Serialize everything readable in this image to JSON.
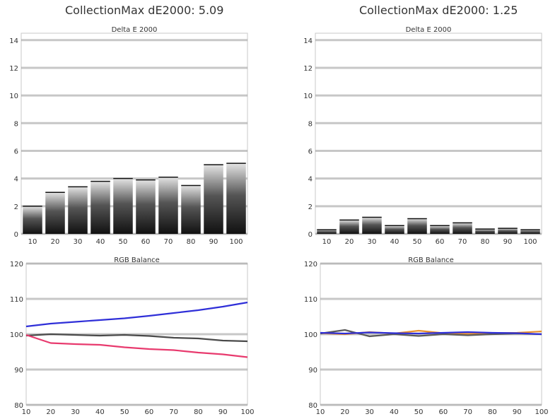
{
  "left_title": "CollectionMax dE2000: 5.09",
  "right_title": "CollectionMax dE2000: 1.25",
  "chart_data": [
    {
      "id": "de-left",
      "type": "bar",
      "title": "Delta E 2000",
      "categories": [
        "10",
        "20",
        "30",
        "40",
        "50",
        "60",
        "70",
        "80",
        "90",
        "100"
      ],
      "values": [
        2.0,
        3.0,
        3.4,
        3.8,
        4.0,
        3.9,
        4.1,
        3.5,
        5.0,
        5.1
      ],
      "ylim": [
        0,
        14.5
      ],
      "yticks": [
        "0",
        "2",
        "4",
        "6",
        "8",
        "10",
        "12",
        "14"
      ],
      "grid": true
    },
    {
      "id": "de-right",
      "type": "bar",
      "title": "Delta E 2000",
      "categories": [
        "10",
        "20",
        "30",
        "40",
        "50",
        "60",
        "70",
        "80",
        "90",
        "100"
      ],
      "values": [
        0.3,
        1.0,
        1.2,
        0.6,
        1.1,
        0.6,
        0.8,
        0.35,
        0.4,
        0.3
      ],
      "ylim": [
        0,
        14.5
      ],
      "yticks": [
        "0",
        "2",
        "4",
        "6",
        "8",
        "10",
        "12",
        "14"
      ],
      "grid": true
    },
    {
      "id": "rgb-left",
      "type": "line",
      "title": "RGB Balance",
      "x": [
        10,
        20,
        30,
        40,
        50,
        60,
        70,
        80,
        90,
        100
      ],
      "xticks": [
        "10",
        "20",
        "30",
        "40",
        "50",
        "60",
        "70",
        "80",
        "90",
        "100"
      ],
      "ylim": [
        80,
        120
      ],
      "yticks": [
        "80",
        "90",
        "100",
        "110",
        "120"
      ],
      "grid": true,
      "series": [
        {
          "color": "#2f2fd8",
          "values": [
            102.2,
            103.0,
            103.5,
            104.0,
            104.5,
            105.2,
            106.0,
            106.8,
            107.8,
            109.0
          ]
        },
        {
          "color": "#4a4a4a",
          "values": [
            99.6,
            100.0,
            99.8,
            99.6,
            99.8,
            99.5,
            99.0,
            98.8,
            98.2,
            98.0
          ]
        },
        {
          "color": "#e83a6e",
          "values": [
            99.8,
            97.5,
            97.2,
            97.0,
            96.3,
            95.8,
            95.5,
            94.8,
            94.3,
            93.5
          ]
        }
      ]
    },
    {
      "id": "rgb-right",
      "type": "line",
      "title": "RGB Balance",
      "x": [
        10,
        20,
        30,
        40,
        50,
        60,
        70,
        80,
        90,
        100
      ],
      "xticks": [
        "10",
        "20",
        "30",
        "40",
        "50",
        "60",
        "70",
        "80",
        "90",
        "100"
      ],
      "ylim": [
        80,
        120
      ],
      "yticks": [
        "80",
        "90",
        "100",
        "110",
        "120"
      ],
      "grid": true,
      "series": [
        {
          "color": "#e8912e",
          "values": [
            100.3,
            100.0,
            100.6,
            100.2,
            101.0,
            100.3,
            100.1,
            100.3,
            100.4,
            100.8
          ]
        },
        {
          "color": "#5a5a5a",
          "values": [
            100.2,
            101.2,
            99.4,
            100.0,
            99.5,
            100.0,
            99.7,
            100.0,
            100.2,
            100.0
          ]
        },
        {
          "color": "#2f2fd8",
          "values": [
            100.4,
            100.2,
            100.5,
            100.3,
            100.2,
            100.4,
            100.6,
            100.4,
            100.3,
            100.0
          ]
        }
      ]
    }
  ]
}
